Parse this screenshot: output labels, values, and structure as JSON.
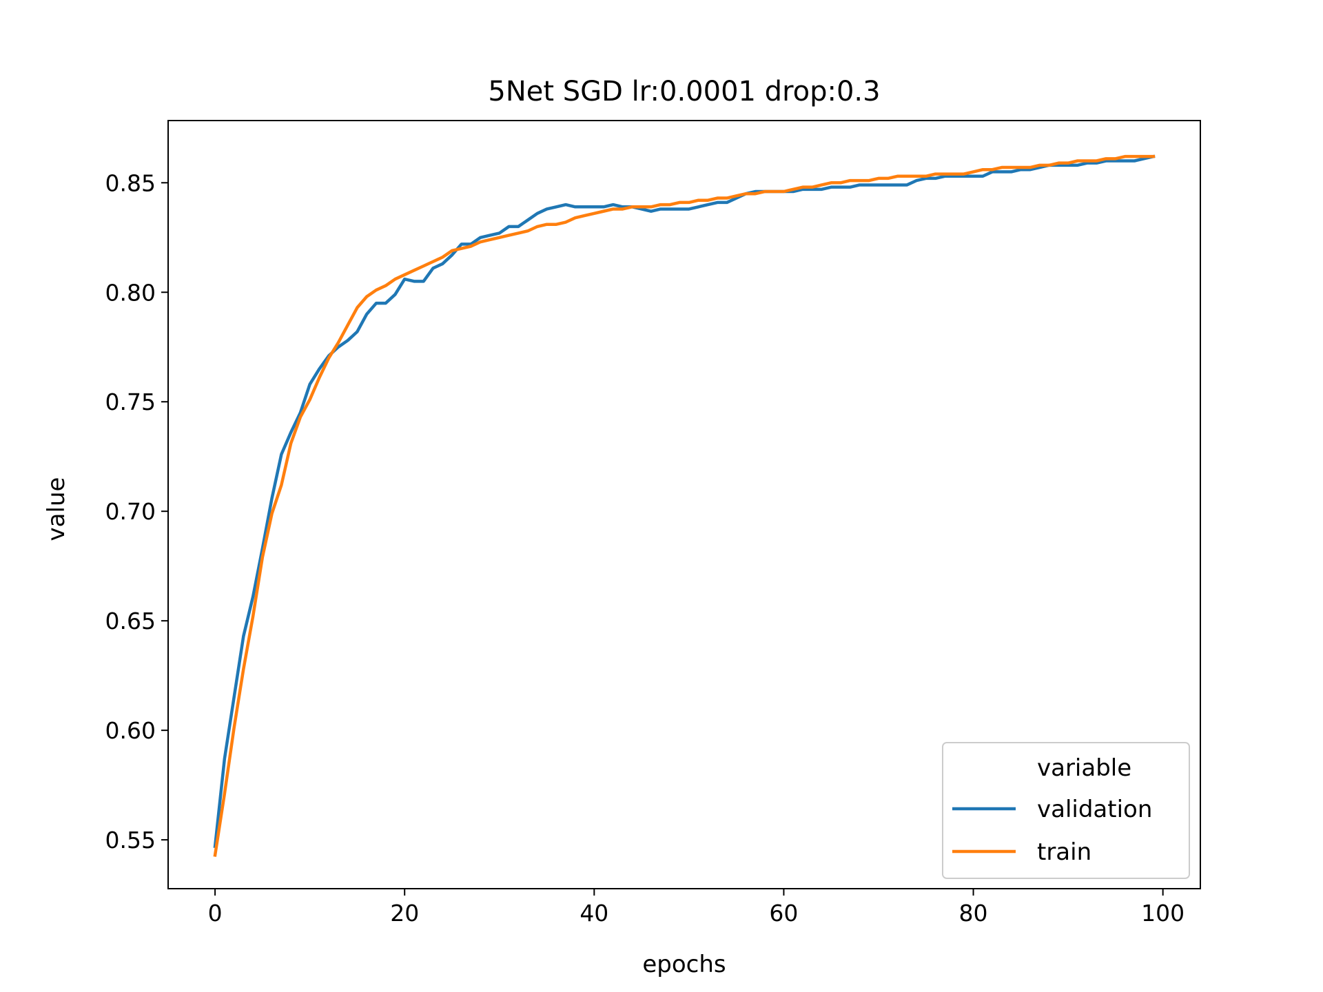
{
  "chart_data": {
    "type": "line",
    "title": "5Net SGD lr:0.0001 drop:0.3",
    "xlabel": "epochs",
    "ylabel": "value",
    "xlim": [
      -4.95,
      103.95
    ],
    "ylim": [
      0.5277,
      0.8784
    ],
    "xticks": [
      0,
      20,
      40,
      60,
      80,
      100
    ],
    "xtick_labels": [
      "0",
      "20",
      "40",
      "60",
      "80",
      "100"
    ],
    "yticks": [
      0.55,
      0.6,
      0.65,
      0.7,
      0.75,
      0.8,
      0.85
    ],
    "ytick_labels": [
      "0.55",
      "0.60",
      "0.65",
      "0.70",
      "0.75",
      "0.80",
      "0.85"
    ],
    "grid": false,
    "legend": {
      "title": "variable",
      "position": "lower-right",
      "entries": [
        "validation",
        "train"
      ]
    },
    "series": [
      {
        "name": "validation",
        "color": "#1f77b4",
        "x": [
          0,
          1,
          2,
          3,
          4,
          5,
          6,
          7,
          8,
          9,
          10,
          11,
          12,
          13,
          14,
          15,
          16,
          17,
          18,
          19,
          20,
          21,
          22,
          23,
          24,
          25,
          26,
          27,
          28,
          29,
          30,
          31,
          32,
          33,
          34,
          35,
          36,
          37,
          38,
          39,
          40,
          41,
          42,
          43,
          44,
          45,
          46,
          47,
          48,
          49,
          50,
          51,
          52,
          53,
          54,
          55,
          56,
          57,
          58,
          59,
          60,
          61,
          62,
          63,
          64,
          65,
          66,
          67,
          68,
          69,
          70,
          71,
          72,
          73,
          74,
          75,
          76,
          77,
          78,
          79,
          80,
          81,
          82,
          83,
          84,
          85,
          86,
          87,
          88,
          89,
          90,
          91,
          92,
          93,
          94,
          95,
          96,
          97,
          98,
          99
        ],
        "values": [
          0.547,
          0.587,
          0.615,
          0.643,
          0.661,
          0.683,
          0.706,
          0.726,
          0.736,
          0.745,
          0.758,
          0.765,
          0.771,
          0.775,
          0.778,
          0.782,
          0.79,
          0.795,
          0.795,
          0.799,
          0.806,
          0.805,
          0.805,
          0.811,
          0.813,
          0.817,
          0.822,
          0.822,
          0.825,
          0.826,
          0.827,
          0.83,
          0.83,
          0.833,
          0.836,
          0.838,
          0.839,
          0.84,
          0.839,
          0.839,
          0.839,
          0.839,
          0.84,
          0.839,
          0.839,
          0.838,
          0.837,
          0.838,
          0.838,
          0.838,
          0.838,
          0.839,
          0.84,
          0.841,
          0.841,
          0.843,
          0.845,
          0.846,
          0.846,
          0.846,
          0.846,
          0.846,
          0.847,
          0.847,
          0.847,
          0.848,
          0.848,
          0.848,
          0.849,
          0.849,
          0.849,
          0.849,
          0.849,
          0.849,
          0.851,
          0.852,
          0.852,
          0.853,
          0.853,
          0.853,
          0.853,
          0.853,
          0.855,
          0.855,
          0.855,
          0.856,
          0.856,
          0.857,
          0.858,
          0.858,
          0.858,
          0.858,
          0.859,
          0.859,
          0.86,
          0.86,
          0.86,
          0.86,
          0.861,
          0.862
        ]
      },
      {
        "name": "train",
        "color": "#ff7f0e",
        "x": [
          0,
          1,
          2,
          3,
          4,
          5,
          6,
          7,
          8,
          9,
          10,
          11,
          12,
          13,
          14,
          15,
          16,
          17,
          18,
          19,
          20,
          21,
          22,
          23,
          24,
          25,
          26,
          27,
          28,
          29,
          30,
          31,
          32,
          33,
          34,
          35,
          36,
          37,
          38,
          39,
          40,
          41,
          42,
          43,
          44,
          45,
          46,
          47,
          48,
          49,
          50,
          51,
          52,
          53,
          54,
          55,
          56,
          57,
          58,
          59,
          60,
          61,
          62,
          63,
          64,
          65,
          66,
          67,
          68,
          69,
          70,
          71,
          72,
          73,
          74,
          75,
          76,
          77,
          78,
          79,
          80,
          81,
          82,
          83,
          84,
          85,
          86,
          87,
          88,
          89,
          90,
          91,
          92,
          93,
          94,
          95,
          96,
          97,
          98,
          99
        ],
        "values": [
          0.543,
          0.571,
          0.601,
          0.628,
          0.652,
          0.679,
          0.699,
          0.712,
          0.731,
          0.743,
          0.751,
          0.761,
          0.77,
          0.777,
          0.785,
          0.793,
          0.798,
          0.801,
          0.803,
          0.806,
          0.808,
          0.81,
          0.812,
          0.814,
          0.816,
          0.819,
          0.82,
          0.821,
          0.823,
          0.824,
          0.825,
          0.826,
          0.827,
          0.828,
          0.83,
          0.831,
          0.831,
          0.832,
          0.834,
          0.835,
          0.836,
          0.837,
          0.838,
          0.838,
          0.839,
          0.839,
          0.839,
          0.84,
          0.84,
          0.841,
          0.841,
          0.842,
          0.842,
          0.843,
          0.843,
          0.844,
          0.845,
          0.845,
          0.846,
          0.846,
          0.846,
          0.847,
          0.848,
          0.848,
          0.849,
          0.85,
          0.85,
          0.851,
          0.851,
          0.851,
          0.852,
          0.852,
          0.853,
          0.853,
          0.853,
          0.853,
          0.854,
          0.854,
          0.854,
          0.854,
          0.855,
          0.856,
          0.856,
          0.857,
          0.857,
          0.857,
          0.857,
          0.858,
          0.858,
          0.859,
          0.859,
          0.86,
          0.86,
          0.86,
          0.861,
          0.861,
          0.862,
          0.862,
          0.862,
          0.862
        ]
      }
    ]
  }
}
